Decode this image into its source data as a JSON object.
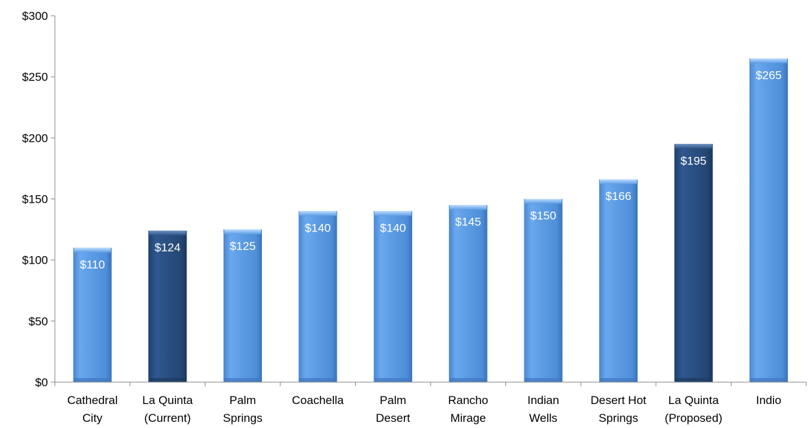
{
  "chart_data": {
    "type": "bar",
    "title": "",
    "xlabel": "",
    "ylabel": "",
    "ylim": [
      0,
      300
    ],
    "yticks": [
      0,
      50,
      100,
      150,
      200,
      250,
      300
    ],
    "ytick_labels": [
      "$0",
      "$50",
      "$100",
      "$150",
      "$200",
      "$250",
      "$300"
    ],
    "grid": false,
    "categories": [
      [
        "Cathedral",
        "City"
      ],
      [
        "La Quinta",
        "(Current)"
      ],
      [
        "Palm",
        "Springs"
      ],
      [
        "Coachella"
      ],
      [
        "Palm",
        "Desert"
      ],
      [
        "Rancho",
        "Mirage"
      ],
      [
        "Indian",
        "Wells"
      ],
      [
        "Desert Hot",
        "Springs"
      ],
      [
        "La Quinta",
        "(Proposed)"
      ],
      [
        "Indio"
      ]
    ],
    "values": [
      110,
      124,
      125,
      140,
      140,
      145,
      150,
      166,
      195,
      265
    ],
    "data_labels": [
      "$110",
      "$124",
      "$125",
      "$140",
      "$140",
      "$145",
      "$150",
      "$166",
      "$195",
      "$265"
    ],
    "highlight": [
      false,
      true,
      false,
      false,
      false,
      false,
      false,
      false,
      true,
      false
    ],
    "colors": {
      "bar": "#5b9be3",
      "bar_dark": "#2a4f82",
      "data_label": "#ffffff",
      "axis": "#888888"
    }
  }
}
